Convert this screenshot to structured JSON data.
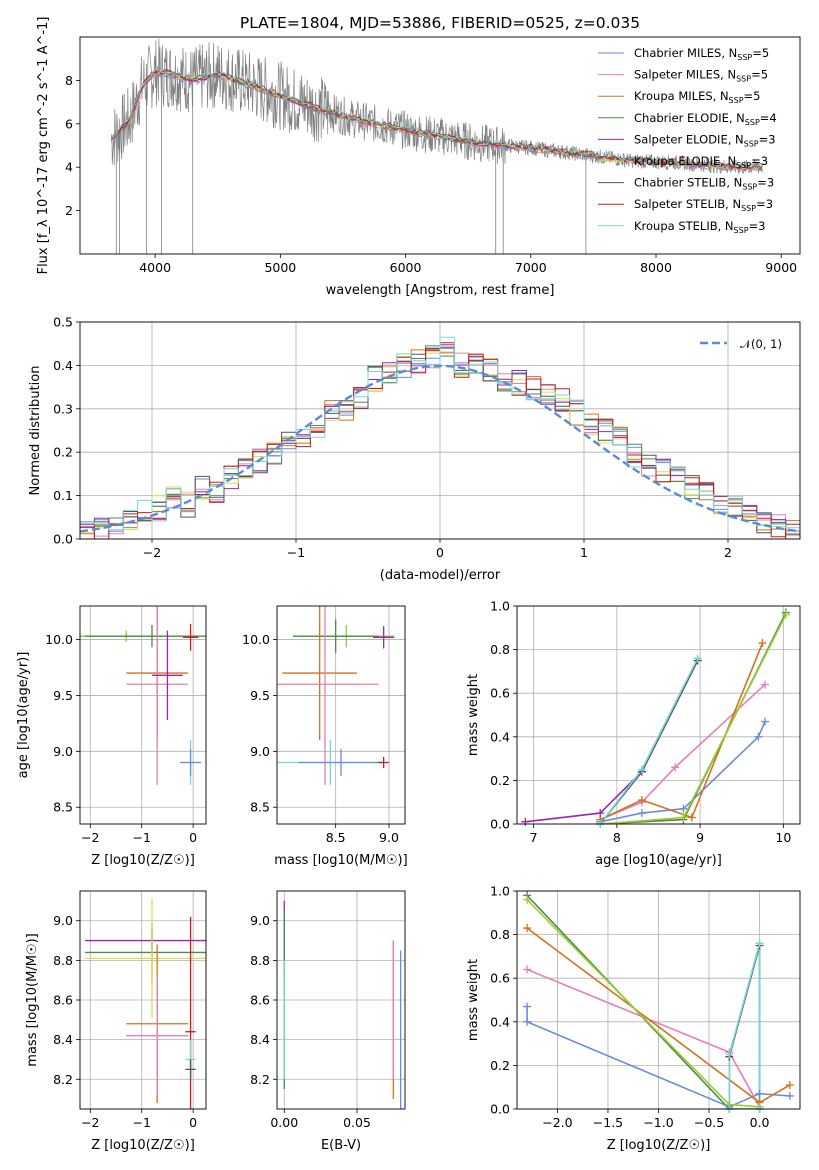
{
  "chart_data": [
    {
      "id": "spectrum",
      "type": "line",
      "title": "PLATE=1804, MJD=53886, FIBERID=0525, z=0.035",
      "xlabel": "wavelength [Angstrom, rest frame]",
      "ylabel": "Flux [f_λ 10^-17 erg cm^-2 s^-1 A^-1]",
      "xlim": [
        3400,
        9150
      ],
      "ylim": [
        0,
        10
      ],
      "xticks": [
        4000,
        5000,
        6000,
        7000,
        8000,
        9000
      ],
      "yticks": [
        2,
        4,
        6,
        8
      ],
      "grid": false,
      "legend_position": "top-right",
      "data_color": "#808080",
      "continuum_points": [
        {
          "x": 3650,
          "y": 5.3
        },
        {
          "x": 3800,
          "y": 6.2
        },
        {
          "x": 3900,
          "y": 7.8
        },
        {
          "x": 4000,
          "y": 8.4
        },
        {
          "x": 4100,
          "y": 8.3
        },
        {
          "x": 4300,
          "y": 8.0
        },
        {
          "x": 4500,
          "y": 8.3
        },
        {
          "x": 4700,
          "y": 7.9
        },
        {
          "x": 5000,
          "y": 7.3
        },
        {
          "x": 5300,
          "y": 6.7
        },
        {
          "x": 5600,
          "y": 6.2
        },
        {
          "x": 6000,
          "y": 5.7
        },
        {
          "x": 6300,
          "y": 5.4
        },
        {
          "x": 6600,
          "y": 5.1
        },
        {
          "x": 7000,
          "y": 4.9
        },
        {
          "x": 7400,
          "y": 4.6
        },
        {
          "x": 7800,
          "y": 4.3
        },
        {
          "x": 8200,
          "y": 4.2
        },
        {
          "x": 8600,
          "y": 4.0
        },
        {
          "x": 8850,
          "y": 4.0
        }
      ],
      "series": [
        {
          "label": "Chabrier MILES, ",
          "sub": "SSP",
          "tail": "=5",
          "color": "#6a8bdb"
        },
        {
          "label": "Salpeter MILES, ",
          "sub": "SSP",
          "tail": "=5",
          "color": "#e47fb7"
        },
        {
          "label": "Kroupa MILES, ",
          "sub": "SSP",
          "tail": "=5",
          "color": "#d2731d"
        },
        {
          "label": "Chabrier ELODIE, ",
          "sub": "SSP",
          "tail": "=4",
          "color": "#4c8a4c"
        },
        {
          "label": "Salpeter ELODIE, ",
          "sub": "SSP",
          "tail": "=3",
          "color": "#9b27b0"
        },
        {
          "label": "Kroupa ELODIE, ",
          "sub": "SSP",
          "tail": "=3",
          "color": "#d9e04c"
        },
        {
          "label": "Chabrier STELIB, ",
          "sub": "SSP",
          "tail": "=3",
          "color": "#555555"
        },
        {
          "label": "Salpeter STELIB, ",
          "sub": "SSP",
          "tail": "=3",
          "color": "#c41e1e"
        },
        {
          "label": "Kroupa STELIB, ",
          "sub": "SSP",
          "tail": "=3",
          "color": "#73d8d8"
        }
      ]
    },
    {
      "id": "residuals",
      "type": "area",
      "xlabel": "(data-model)/error",
      "ylabel": "Normed distribution",
      "xlim": [
        -2.5,
        2.5
      ],
      "ylim": [
        0,
        0.5
      ],
      "xticks": [
        -2,
        -1,
        0,
        1,
        2
      ],
      "yticks": [
        0.0,
        0.1,
        0.2,
        0.3,
        0.4,
        0.5
      ],
      "grid": true,
      "legend_position": "top-right",
      "legend_label": "𝒩(0, 1)",
      "gaussian": {
        "mean": 0,
        "sigma": 1,
        "color": "#5b8bd6"
      },
      "bin_width": 0.1,
      "histogram_bins": [
        -2.5,
        -2.4,
        -2.3,
        -2.2,
        -2.1,
        -2.0,
        -1.9,
        -1.8,
        -1.7,
        -1.6,
        -1.5,
        -1.4,
        -1.3,
        -1.2,
        -1.1,
        -1.0,
        -0.9,
        -0.8,
        -0.7,
        -0.6,
        -0.5,
        -0.4,
        -0.3,
        -0.2,
        -0.1,
        0.0,
        0.1,
        0.2,
        0.3,
        0.4,
        0.5,
        0.6,
        0.7,
        0.8,
        0.9,
        1.0,
        1.1,
        1.2,
        1.3,
        1.4,
        1.5,
        1.6,
        1.7,
        1.8,
        1.9,
        2.0,
        2.1,
        2.2,
        2.3,
        2.4
      ],
      "histogram_values": [
        0.02,
        0.02,
        0.03,
        0.05,
        0.06,
        0.07,
        0.09,
        0.08,
        0.12,
        0.11,
        0.14,
        0.16,
        0.18,
        0.2,
        0.22,
        0.24,
        0.26,
        0.29,
        0.3,
        0.33,
        0.37,
        0.38,
        0.4,
        0.41,
        0.42,
        0.44,
        0.4,
        0.41,
        0.39,
        0.37,
        0.36,
        0.35,
        0.34,
        0.32,
        0.29,
        0.27,
        0.25,
        0.24,
        0.19,
        0.17,
        0.16,
        0.14,
        0.12,
        0.1,
        0.08,
        0.07,
        0.05,
        0.04,
        0.03,
        0.02
      ],
      "series_count": 9
    },
    {
      "id": "age-vs-Z",
      "type": "scatter",
      "xlabel": "Z [log10(Z/Z☉)]",
      "ylabel": "age  [log10(age/yr)]",
      "xlim": [
        -2.2,
        0.25
      ],
      "ylim": [
        8.35,
        10.3
      ],
      "xticks": [
        -2,
        -1,
        0
      ],
      "yticks": [
        8.5,
        9.0,
        9.5,
        10.0
      ],
      "grid": true,
      "bars": [
        {
          "x": -1.3,
          "xerr": 0.9,
          "y": 10.03,
          "yerr": 0.05,
          "color": "#9acd32"
        },
        {
          "x": -0.8,
          "xerr": 1.3,
          "y": 10.03,
          "yerr": 0.1,
          "color": "#4c8a4c"
        },
        {
          "x": -0.7,
          "xerr": 0.6,
          "y": 9.7,
          "yerr": 0.6,
          "color": "#d2731d"
        },
        {
          "x": -0.7,
          "xerr": 0.6,
          "y": 9.6,
          "yerr": 0.9,
          "color": "#e47fb7"
        },
        {
          "x": -0.5,
          "xerr": 0.3,
          "y": 9.68,
          "yerr": 0.4,
          "color": "#9b27b0"
        },
        {
          "x": -0.05,
          "xerr": 0.15,
          "y": 10.02,
          "yerr": 0.12,
          "color": "#c41e1e"
        },
        {
          "x": -0.05,
          "xerr": 0.2,
          "y": 8.9,
          "yerr": 0.2,
          "color": "#73d8d8"
        },
        {
          "x": -0.05,
          "xerr": 0.2,
          "y": 8.9,
          "yerr": 0.12,
          "color": "#6a8bdb"
        }
      ]
    },
    {
      "id": "age-vs-mass",
      "type": "scatter",
      "xlabel": "mass [log10(M/M☉)]",
      "ylabel": "",
      "xlim": [
        7.95,
        9.15
      ],
      "ylim": [
        8.35,
        10.3
      ],
      "xticks": [
        8.5,
        9.0
      ],
      "yticks": [
        8.5,
        9.0,
        9.5,
        10.0
      ],
      "grid": true,
      "bars": [
        {
          "x": 8.6,
          "xerr": 0.45,
          "y": 10.03,
          "yerr": 0.1,
          "color": "#9acd32"
        },
        {
          "x": 8.5,
          "xerr": 0.4,
          "y": 10.03,
          "yerr": 0.15,
          "color": "#4c8a4c"
        },
        {
          "x": 8.35,
          "xerr": 0.35,
          "y": 9.7,
          "yerr": 0.6,
          "color": "#d2731d"
        },
        {
          "x": 8.4,
          "xerr": 0.5,
          "y": 9.6,
          "yerr": 0.9,
          "color": "#e47fb7"
        },
        {
          "x": 8.95,
          "xerr": 0.1,
          "y": 10.02,
          "yerr": 0.1,
          "color": "#9b27b0"
        },
        {
          "x": 8.45,
          "xerr": 0.5,
          "y": 8.9,
          "yerr": 0.2,
          "color": "#73d8d8"
        },
        {
          "x": 8.55,
          "xerr": 0.4,
          "y": 8.9,
          "yerr": 0.12,
          "color": "#6a8bdb"
        },
        {
          "x": 8.95,
          "xerr": 0.05,
          "y": 8.9,
          "yerr": 0.05,
          "color": "#c41e1e"
        }
      ]
    },
    {
      "id": "weight-vs-age",
      "type": "line",
      "xlabel": "age  [log10(age/yr)]",
      "ylabel": "mass weight",
      "xlim": [
        6.8,
        10.2
      ],
      "ylim": [
        0.0,
        1.0
      ],
      "xticks": [
        7,
        8,
        9,
        10
      ],
      "yticks": [
        0.0,
        0.2,
        0.4,
        0.6,
        0.8,
        1.0
      ],
      "grid": true,
      "series": [
        {
          "color": "#6a8bdb",
          "x": [
            7.8,
            8.3,
            8.8,
            9.7,
            9.78
          ],
          "y": [
            0.01,
            0.05,
            0.07,
            0.4,
            0.47
          ]
        },
        {
          "color": "#e47fb7",
          "x": [
            7.8,
            8.3,
            8.7,
            9.78
          ],
          "y": [
            0.02,
            0.1,
            0.26,
            0.64
          ]
        },
        {
          "color": "#d2731d",
          "x": [
            7.8,
            8.3,
            8.9,
            9.75
          ],
          "y": [
            0.02,
            0.11,
            0.03,
            0.83
          ]
        },
        {
          "color": "#9b27b0",
          "x": [
            6.9,
            7.8,
            8.3,
            8.97
          ],
          "y": [
            0.01,
            0.05,
            0.24,
            0.75
          ]
        },
        {
          "color": "#4c8a4c",
          "x": [
            7.8,
            8.8,
            10.03
          ],
          "y": [
            0.0,
            0.02,
            0.97
          ]
        },
        {
          "color": "#9acd32",
          "x": [
            7.8,
            8.8,
            10.03
          ],
          "y": [
            0.0,
            0.03,
            0.96
          ]
        },
        {
          "color": "#555555",
          "x": [
            7.8,
            8.3,
            8.97
          ],
          "y": [
            0.0,
            0.24,
            0.75
          ]
        },
        {
          "color": "#73d8d8",
          "x": [
            7.8,
            8.3,
            8.97
          ],
          "y": [
            0.0,
            0.25,
            0.76
          ]
        }
      ]
    },
    {
      "id": "mass-vs-Z",
      "type": "scatter",
      "xlabel": "Z [log10(Z/Z☉)]",
      "ylabel": "mass [log10(M/M☉)]",
      "xlim": [
        -2.2,
        0.25
      ],
      "ylim": [
        8.05,
        9.15
      ],
      "xticks": [
        -2,
        -1,
        0
      ],
      "yticks": [
        8.2,
        8.4,
        8.6,
        8.8,
        9.0
      ],
      "grid": true,
      "bars": [
        {
          "x": -0.8,
          "xerr": 1.3,
          "y": 8.9,
          "yerr": 0.05,
          "color": "#9b27b0"
        },
        {
          "x": -0.8,
          "xerr": 1.3,
          "y": 8.84,
          "yerr": 0.15,
          "color": "#4c8a4c"
        },
        {
          "x": -0.8,
          "xerr": 1.3,
          "y": 8.81,
          "yerr": 0.3,
          "color": "#d9e04c"
        },
        {
          "x": -0.7,
          "xerr": 0.6,
          "y": 8.48,
          "yerr": 0.4,
          "color": "#d2731d"
        },
        {
          "x": -0.7,
          "xerr": 0.6,
          "y": 8.42,
          "yerr": 0.3,
          "color": "#e47fb7"
        },
        {
          "x": -0.05,
          "xerr": 0.1,
          "y": 8.44,
          "yerr": 0.58,
          "color": "#c41e1e"
        },
        {
          "x": -0.05,
          "xerr": 0.1,
          "y": 8.3,
          "yerr": 0.1,
          "color": "#73d8d8"
        },
        {
          "x": -0.05,
          "xerr": 0.1,
          "y": 8.25,
          "yerr": 0.05,
          "color": "#555555"
        }
      ]
    },
    {
      "id": "mass-vs-EBV",
      "type": "scatter",
      "xlabel": "E(B-V)",
      "ylabel": "",
      "xlim": [
        -0.005,
        0.083
      ],
      "ylim": [
        8.05,
        9.15
      ],
      "xticks": [
        0.0,
        0.05
      ],
      "yticks": [
        8.2,
        8.4,
        8.6,
        8.8,
        9.0
      ],
      "grid": true,
      "bars": [
        {
          "x": 0.0,
          "y": 8.9,
          "yerr": 0.2,
          "color": "#9b27b0"
        },
        {
          "x": 0.0,
          "y": 8.6,
          "yerr": 0.45,
          "color": "#4c8a4c"
        },
        {
          "x": 0.0,
          "y": 8.5,
          "yerr": 0.3,
          "color": "#73d8d8"
        },
        {
          "x": 0.075,
          "y": 8.5,
          "yerr": 0.4,
          "color": "#d2731d"
        },
        {
          "x": 0.075,
          "y": 8.55,
          "yerr": 0.35,
          "color": "#e47fb7"
        },
        {
          "x": 0.08,
          "y": 8.45,
          "yerr": 0.4,
          "color": "#6a8bdb"
        }
      ]
    },
    {
      "id": "weight-vs-Z",
      "type": "line",
      "xlabel": "Z [log10(Z/Z☉)]",
      "ylabel": "mass weight",
      "xlim": [
        -2.4,
        0.4
      ],
      "ylim": [
        0.0,
        1.0
      ],
      "xticks": [
        -2.0,
        -1.5,
        -1.0,
        -0.5,
        0.0
      ],
      "yticks": [
        0.0,
        0.2,
        0.4,
        0.6,
        0.8,
        1.0
      ],
      "grid": true,
      "series": [
        {
          "color": "#6a8bdb",
          "x": [
            -2.3,
            -2.3,
            -0.3,
            0.0,
            0.3
          ],
          "y": [
            0.47,
            0.4,
            0.01,
            0.07,
            0.06
          ]
        },
        {
          "color": "#e47fb7",
          "x": [
            -2.3,
            -0.3,
            0.0
          ],
          "y": [
            0.64,
            0.26,
            0.01
          ]
        },
        {
          "color": "#d2731d",
          "x": [
            -2.3,
            0.0,
            0.3
          ],
          "y": [
            0.83,
            0.03,
            0.11
          ]
        },
        {
          "color": "#4c8a4c",
          "x": [
            -2.3,
            -0.3,
            0.0
          ],
          "y": [
            0.98,
            0.0,
            0.0
          ]
        },
        {
          "color": "#9acd32",
          "x": [
            -2.3,
            -0.3,
            0.0
          ],
          "y": [
            0.96,
            0.02,
            0.01
          ]
        },
        {
          "color": "#555555",
          "x": [
            -0.3,
            -0.3,
            0.0,
            0.0
          ],
          "y": [
            0.0,
            0.24,
            0.75,
            0.0
          ]
        },
        {
          "color": "#73d8d8",
          "x": [
            -0.3,
            -0.3,
            0.0,
            0.0
          ],
          "y": [
            0.0,
            0.25,
            0.76,
            0.0
          ]
        }
      ]
    }
  ]
}
